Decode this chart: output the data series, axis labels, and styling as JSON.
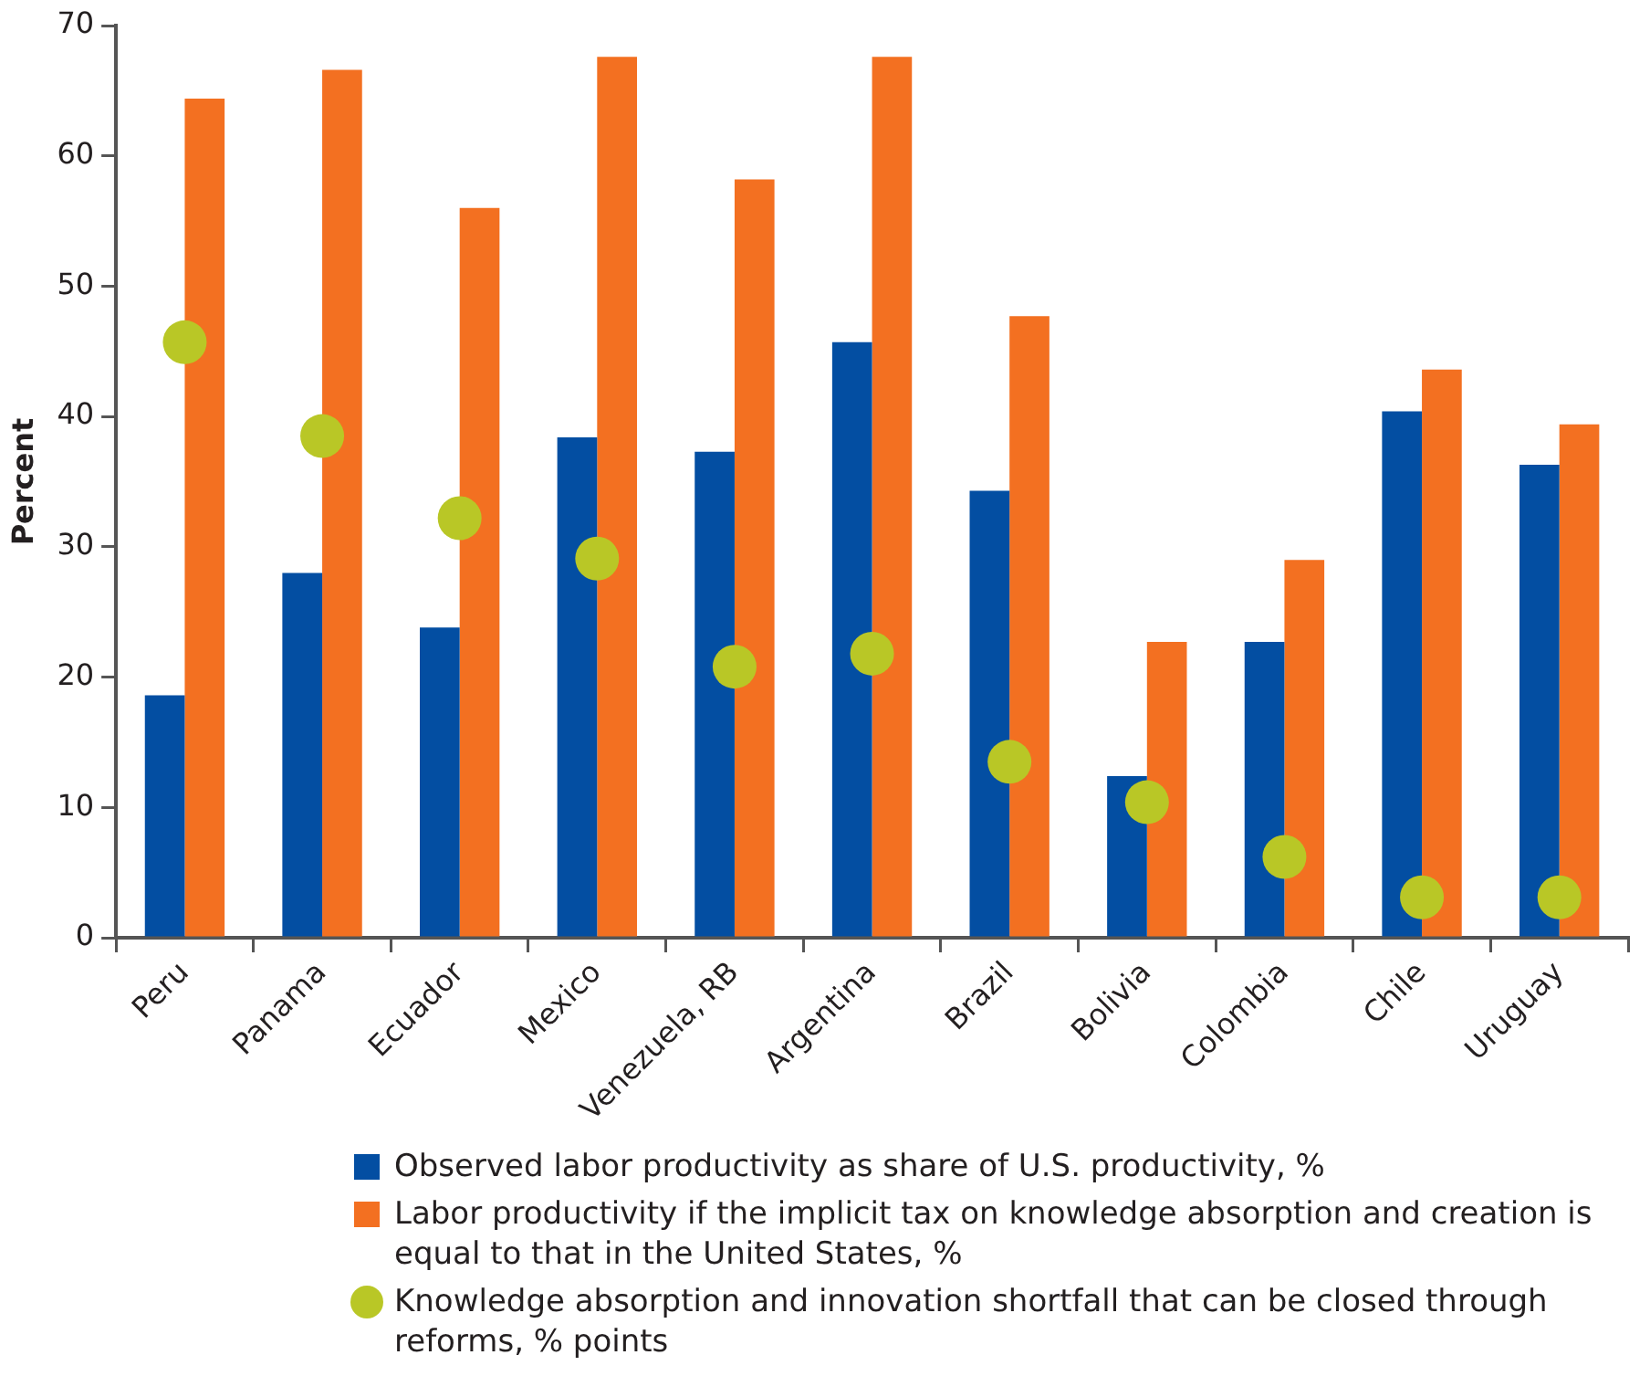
{
  "chart_data": {
    "type": "bar",
    "ylabel": "Percent",
    "categories": [
      "Peru",
      "Panama",
      "Ecuador",
      "Mexico",
      "Venezuela, RB",
      "Argentina",
      "Brazil",
      "Bolivia",
      "Colombia",
      "Chile",
      "Uruguay"
    ],
    "series": [
      {
        "name": "Observed labor productivity as share of U.S. productivity, %",
        "color": "#034ea2",
        "values": [
          18.6,
          28.0,
          23.8,
          38.4,
          37.3,
          45.7,
          34.3,
          12.4,
          22.7,
          40.4,
          36.3
        ]
      },
      {
        "name": "Labor productivity if the implicit tax on knowledge absorption and creation is equal to that in the United States, %",
        "color": "#f37021",
        "values": [
          64.4,
          66.6,
          56.0,
          67.6,
          58.2,
          67.6,
          47.7,
          22.7,
          29.0,
          43.6,
          39.4
        ]
      },
      {
        "name": "Knowledge absorption and innovation shortfall that can be closed through reforms, % points",
        "type": "scatter",
        "color": "#b9c726",
        "values": [
          45.7,
          38.5,
          32.2,
          29.1,
          20.8,
          21.8,
          13.5,
          10.4,
          6.2,
          3.1,
          3.1
        ]
      }
    ],
    "ylim": [
      0,
      70
    ],
    "yticks": [
      0,
      10,
      20,
      30,
      40,
      50,
      60,
      70
    ],
    "grid": false,
    "legend": "bottom",
    "marker": "circle"
  }
}
